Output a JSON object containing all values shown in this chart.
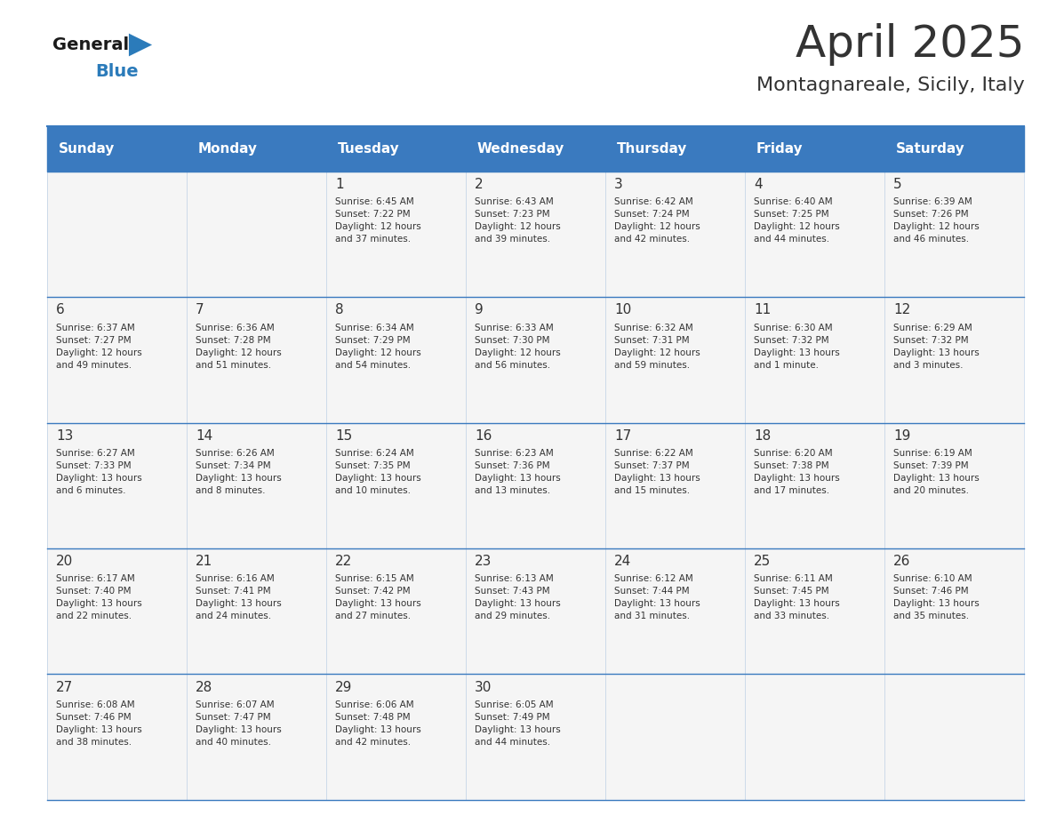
{
  "title": "April 2025",
  "subtitle": "Montagnareale, Sicily, Italy",
  "header_color": "#3a7abf",
  "header_text_color": "#ffffff",
  "cell_bg_color": "#f5f5f5",
  "cell_alt_bg": "#ffffff",
  "border_color": "#3a7abf",
  "text_color": "#333333",
  "days_of_week": [
    "Sunday",
    "Monday",
    "Tuesday",
    "Wednesday",
    "Thursday",
    "Friday",
    "Saturday"
  ],
  "weeks": [
    [
      {
        "day": "",
        "info": ""
      },
      {
        "day": "",
        "info": ""
      },
      {
        "day": "1",
        "info": "Sunrise: 6:45 AM\nSunset: 7:22 PM\nDaylight: 12 hours\nand 37 minutes."
      },
      {
        "day": "2",
        "info": "Sunrise: 6:43 AM\nSunset: 7:23 PM\nDaylight: 12 hours\nand 39 minutes."
      },
      {
        "day": "3",
        "info": "Sunrise: 6:42 AM\nSunset: 7:24 PM\nDaylight: 12 hours\nand 42 minutes."
      },
      {
        "day": "4",
        "info": "Sunrise: 6:40 AM\nSunset: 7:25 PM\nDaylight: 12 hours\nand 44 minutes."
      },
      {
        "day": "5",
        "info": "Sunrise: 6:39 AM\nSunset: 7:26 PM\nDaylight: 12 hours\nand 46 minutes."
      }
    ],
    [
      {
        "day": "6",
        "info": "Sunrise: 6:37 AM\nSunset: 7:27 PM\nDaylight: 12 hours\nand 49 minutes."
      },
      {
        "day": "7",
        "info": "Sunrise: 6:36 AM\nSunset: 7:28 PM\nDaylight: 12 hours\nand 51 minutes."
      },
      {
        "day": "8",
        "info": "Sunrise: 6:34 AM\nSunset: 7:29 PM\nDaylight: 12 hours\nand 54 minutes."
      },
      {
        "day": "9",
        "info": "Sunrise: 6:33 AM\nSunset: 7:30 PM\nDaylight: 12 hours\nand 56 minutes."
      },
      {
        "day": "10",
        "info": "Sunrise: 6:32 AM\nSunset: 7:31 PM\nDaylight: 12 hours\nand 59 minutes."
      },
      {
        "day": "11",
        "info": "Sunrise: 6:30 AM\nSunset: 7:32 PM\nDaylight: 13 hours\nand 1 minute."
      },
      {
        "day": "12",
        "info": "Sunrise: 6:29 AM\nSunset: 7:32 PM\nDaylight: 13 hours\nand 3 minutes."
      }
    ],
    [
      {
        "day": "13",
        "info": "Sunrise: 6:27 AM\nSunset: 7:33 PM\nDaylight: 13 hours\nand 6 minutes."
      },
      {
        "day": "14",
        "info": "Sunrise: 6:26 AM\nSunset: 7:34 PM\nDaylight: 13 hours\nand 8 minutes."
      },
      {
        "day": "15",
        "info": "Sunrise: 6:24 AM\nSunset: 7:35 PM\nDaylight: 13 hours\nand 10 minutes."
      },
      {
        "day": "16",
        "info": "Sunrise: 6:23 AM\nSunset: 7:36 PM\nDaylight: 13 hours\nand 13 minutes."
      },
      {
        "day": "17",
        "info": "Sunrise: 6:22 AM\nSunset: 7:37 PM\nDaylight: 13 hours\nand 15 minutes."
      },
      {
        "day": "18",
        "info": "Sunrise: 6:20 AM\nSunset: 7:38 PM\nDaylight: 13 hours\nand 17 minutes."
      },
      {
        "day": "19",
        "info": "Sunrise: 6:19 AM\nSunset: 7:39 PM\nDaylight: 13 hours\nand 20 minutes."
      }
    ],
    [
      {
        "day": "20",
        "info": "Sunrise: 6:17 AM\nSunset: 7:40 PM\nDaylight: 13 hours\nand 22 minutes."
      },
      {
        "day": "21",
        "info": "Sunrise: 6:16 AM\nSunset: 7:41 PM\nDaylight: 13 hours\nand 24 minutes."
      },
      {
        "day": "22",
        "info": "Sunrise: 6:15 AM\nSunset: 7:42 PM\nDaylight: 13 hours\nand 27 minutes."
      },
      {
        "day": "23",
        "info": "Sunrise: 6:13 AM\nSunset: 7:43 PM\nDaylight: 13 hours\nand 29 minutes."
      },
      {
        "day": "24",
        "info": "Sunrise: 6:12 AM\nSunset: 7:44 PM\nDaylight: 13 hours\nand 31 minutes."
      },
      {
        "day": "25",
        "info": "Sunrise: 6:11 AM\nSunset: 7:45 PM\nDaylight: 13 hours\nand 33 minutes."
      },
      {
        "day": "26",
        "info": "Sunrise: 6:10 AM\nSunset: 7:46 PM\nDaylight: 13 hours\nand 35 minutes."
      }
    ],
    [
      {
        "day": "27",
        "info": "Sunrise: 6:08 AM\nSunset: 7:46 PM\nDaylight: 13 hours\nand 38 minutes."
      },
      {
        "day": "28",
        "info": "Sunrise: 6:07 AM\nSunset: 7:47 PM\nDaylight: 13 hours\nand 40 minutes."
      },
      {
        "day": "29",
        "info": "Sunrise: 6:06 AM\nSunset: 7:48 PM\nDaylight: 13 hours\nand 42 minutes."
      },
      {
        "day": "30",
        "info": "Sunrise: 6:05 AM\nSunset: 7:49 PM\nDaylight: 13 hours\nand 44 minutes."
      },
      {
        "day": "",
        "info": ""
      },
      {
        "day": "",
        "info": ""
      },
      {
        "day": "",
        "info": ""
      }
    ]
  ],
  "logo_text_general": "General",
  "logo_text_blue": "Blue",
  "logo_color_general": "#1a1a1a",
  "logo_color_blue": "#2b7bba",
  "logo_triangle_color": "#2b7bba"
}
